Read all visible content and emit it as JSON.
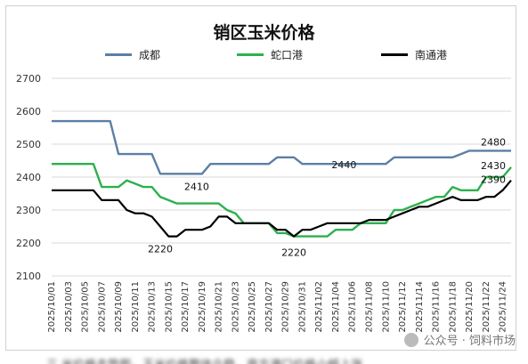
{
  "chart_data": {
    "type": "line",
    "title": "销区玉米价格",
    "xlabel": "",
    "ylabel": "",
    "ylim": [
      2100,
      2700
    ],
    "yticks": [
      2100,
      2200,
      2300,
      2400,
      2500,
      2600,
      2700
    ],
    "grid": "horizontal",
    "legend_position": "top",
    "x_tick_labels": [
      "2025/10/01",
      "2025/10/03",
      "2025/10/05",
      "2025/10/07",
      "2025/10/09",
      "2025/10/11",
      "2025/10/13",
      "2025/10/15",
      "2025/10/17",
      "2025/10/19",
      "2025/10/21",
      "2025/10/23",
      "2025/10/25",
      "2025/10/27",
      "2025/10/29",
      "2025/10/31",
      "2025/11/02",
      "2025/11/04",
      "2025/11/06",
      "2025/11/08",
      "2025/11/10",
      "2025/11/12",
      "2025/11/14",
      "2025/11/16",
      "2025/11/18",
      "2025/11/20",
      "2025/11/22",
      "2025/11/24"
    ],
    "x": [
      "2025/10/01",
      "2025/10/02",
      "2025/10/03",
      "2025/10/04",
      "2025/10/05",
      "2025/10/06",
      "2025/10/07",
      "2025/10/08",
      "2025/10/09",
      "2025/10/10",
      "2025/10/11",
      "2025/10/12",
      "2025/10/13",
      "2025/10/14",
      "2025/10/15",
      "2025/10/16",
      "2025/10/17",
      "2025/10/18",
      "2025/10/19",
      "2025/10/20",
      "2025/10/21",
      "2025/10/22",
      "2025/10/23",
      "2025/10/24",
      "2025/10/25",
      "2025/10/26",
      "2025/10/27",
      "2025/10/28",
      "2025/10/29",
      "2025/10/30",
      "2025/10/31",
      "2025/11/01",
      "2025/11/02",
      "2025/11/03",
      "2025/11/04",
      "2025/11/05",
      "2025/11/06",
      "2025/11/07",
      "2025/11/08",
      "2025/11/09",
      "2025/11/10",
      "2025/11/11",
      "2025/11/12",
      "2025/11/13",
      "2025/11/14",
      "2025/11/15",
      "2025/11/16",
      "2025/11/17",
      "2025/11/18",
      "2025/11/19",
      "2025/11/20",
      "2025/11/21",
      "2025/11/22",
      "2025/11/23",
      "2025/11/24",
      "2025/11/25"
    ],
    "series": [
      {
        "name": "成都",
        "color": "#5b7fa6",
        "values": [
          2570,
          2570,
          2570,
          2570,
          2570,
          2570,
          2570,
          2570,
          2470,
          2470,
          2470,
          2470,
          2470,
          2410,
          2410,
          2410,
          2410,
          2410,
          2410,
          2440,
          2440,
          2440,
          2440,
          2440,
          2440,
          2440,
          2440,
          2460,
          2460,
          2460,
          2440,
          2440,
          2440,
          2440,
          2440,
          2440,
          2440,
          2440,
          2440,
          2440,
          2440,
          2460,
          2460,
          2460,
          2460,
          2460,
          2460,
          2460,
          2460,
          2470,
          2480,
          2480,
          2480,
          2480,
          2480,
          2480
        ]
      },
      {
        "name": "蛇口港",
        "color": "#2eb04f",
        "values": [
          2440,
          2440,
          2440,
          2440,
          2440,
          2440,
          2370,
          2370,
          2370,
          2390,
          2380,
          2370,
          2370,
          2340,
          2330,
          2320,
          2320,
          2320,
          2320,
          2320,
          2320,
          2300,
          2290,
          2260,
          2260,
          2260,
          2260,
          2230,
          2230,
          2220,
          2220,
          2220,
          2220,
          2220,
          2240,
          2240,
          2240,
          2260,
          2260,
          2260,
          2260,
          2300,
          2300,
          2310,
          2320,
          2330,
          2340,
          2340,
          2370,
          2360,
          2360,
          2360,
          2400,
          2400,
          2400,
          2430
        ]
      },
      {
        "name": "南通港",
        "color": "#000000",
        "values": [
          2360,
          2360,
          2360,
          2360,
          2360,
          2360,
          2330,
          2330,
          2330,
          2300,
          2290,
          2290,
          2280,
          2250,
          2220,
          2220,
          2240,
          2240,
          2240,
          2250,
          2280,
          2280,
          2260,
          2260,
          2260,
          2260,
          2260,
          2240,
          2240,
          2220,
          2240,
          2240,
          2250,
          2260,
          2260,
          2260,
          2260,
          2260,
          2270,
          2270,
          2270,
          2280,
          2290,
          2300,
          2310,
          2310,
          2320,
          2330,
          2340,
          2330,
          2330,
          2330,
          2340,
          2340,
          2360,
          2390
        ]
      }
    ],
    "annotations": [
      {
        "text": "2410",
        "x": "2025/10/19",
        "y": 2410
      },
      {
        "text": "2220",
        "x": "2025/10/14",
        "y": 2220
      },
      {
        "text": "2220",
        "x": "2025/10/30",
        "y": 2220
      },
      {
        "text": "2440",
        "x": "2025/11/05",
        "y": 2440
      },
      {
        "text": "2480",
        "x": "2025/11/25",
        "y": 2480
      },
      {
        "text": "2430",
        "x": "2025/11/25",
        "y": 2430
      },
      {
        "text": "2390",
        "x": "2025/11/25",
        "y": 2390
      }
    ]
  },
  "watermark": {
    "text": "公众号 · 饲料市场"
  },
  "bottom_caption": "三 米价格走势图，玉米价格整体企稳，南方港口价格小幅上涨"
}
